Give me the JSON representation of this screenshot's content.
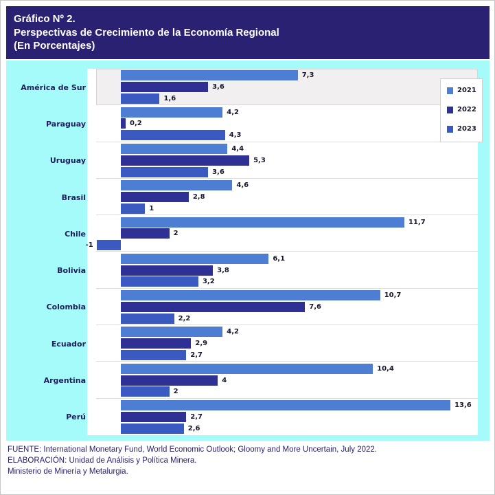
{
  "header": {
    "lines": [
      "Gráfico Nº 2.",
      "Perspectivas de Crecimiento de la Economía Regional",
      "(En Porcentajes)"
    ]
  },
  "chart_data": {
    "type": "bar",
    "orientation": "horizontal",
    "title": "Perspectivas de Crecimiento de la Economía Regional (En Porcentajes)",
    "xlabel": "",
    "ylabel": "",
    "xlim": [
      -1.05,
      14.75
    ],
    "grid": false,
    "legend_position": "top-right",
    "highlighted_category": "América de Sur",
    "categories": [
      "América de Sur",
      "Paraguay",
      "Uruguay",
      "Brasil",
      "Chile",
      "Bolivia",
      "Colombia",
      "Ecuador",
      "Argentina",
      "Perú"
    ],
    "series": [
      {
        "name": "2021",
        "color": "#4d7ed3",
        "values": [
          7.3,
          4.2,
          4.4,
          4.6,
          11.7,
          6.1,
          10.7,
          4.2,
          10.4,
          13.6
        ],
        "labels": [
          "7,3",
          "4,2",
          "4,4",
          "4,6",
          "11,7",
          "6,1",
          "10,7",
          "4,2",
          "10,4",
          "13,6"
        ]
      },
      {
        "name": "2022",
        "color": "#2e3193",
        "values": [
          3.6,
          0.2,
          5.3,
          2.8,
          2,
          3.8,
          7.6,
          2.9,
          4,
          2.7
        ],
        "labels": [
          "3,6",
          "0,2",
          "5,3",
          "2,8",
          "2",
          "3,8",
          "7,6",
          "2,9",
          "4",
          "2,7"
        ]
      },
      {
        "name": "2023",
        "color": "#3a5ac1",
        "values": [
          1.6,
          4.3,
          3.6,
          1,
          -1,
          3.2,
          2.2,
          2.7,
          2,
          2.6
        ],
        "labels": [
          "1,6",
          "4,3",
          "3,6",
          "1",
          "-1",
          "3,2",
          "2,2",
          "2,7",
          "2",
          "2,6"
        ]
      }
    ]
  },
  "footer": {
    "lines": [
      "FUENTE: International Monetary Fund, World Economic Outlook; Gloomy and More Uncertain, July 2022.",
      "ELABORACIÓN: Unidad de Análisis y Política Minera.",
      "Ministerio de Minería y Metalurgia."
    ]
  },
  "colors": {
    "header_bg": "#2a2172",
    "panel_bg": "#a5fafa",
    "plot_bg": "#ffffff",
    "highlight_band_bg": "#f1efef",
    "separator": "#dcdcdc",
    "series_2021": "#4d7ed3",
    "series_2022": "#2e3193",
    "series_2023": "#3a5ac1",
    "value_label": "#17172e",
    "category_label": "#1e1e5a",
    "footer_text": "#2a2172"
  }
}
